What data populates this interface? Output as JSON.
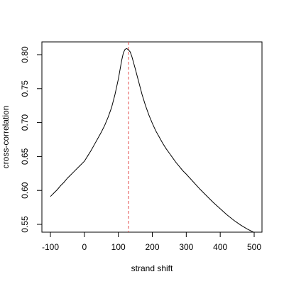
{
  "chart_data": {
    "type": "line",
    "title": "",
    "xlabel": "strand shift",
    "ylabel": "cross-correlation",
    "xlim": [
      -100,
      500
    ],
    "ylim": [
      0.54,
      0.81
    ],
    "xticks": [
      "-100",
      "0",
      "100",
      "200",
      "300",
      "400",
      "500"
    ],
    "yticks": [
      "0.55",
      "0.60",
      "0.65",
      "0.70",
      "0.75",
      "0.80"
    ],
    "grid": false,
    "legend": "none",
    "series": [
      {
        "color": "#000000",
        "x": [
          -100,
          -90,
          -80,
          -70,
          -60,
          -50,
          -40,
          -30,
          -20,
          -10,
          0,
          10,
          20,
          30,
          40,
          50,
          60,
          70,
          80,
          90,
          100,
          105,
          110,
          115,
          120,
          125,
          130,
          135,
          140,
          145,
          150,
          160,
          170,
          180,
          190,
          200,
          210,
          220,
          230,
          240,
          250,
          260,
          270,
          280,
          290,
          300,
          320,
          340,
          360,
          380,
          400,
          420,
          440,
          460,
          480,
          500
        ],
        "y": [
          0.591,
          0.596,
          0.601,
          0.607,
          0.612,
          0.618,
          0.623,
          0.628,
          0.633,
          0.638,
          0.643,
          0.651,
          0.659,
          0.668,
          0.677,
          0.686,
          0.696,
          0.708,
          0.722,
          0.741,
          0.764,
          0.778,
          0.792,
          0.803,
          0.808,
          0.809,
          0.807,
          0.804,
          0.797,
          0.788,
          0.779,
          0.76,
          0.741,
          0.725,
          0.711,
          0.699,
          0.688,
          0.679,
          0.67,
          0.662,
          0.655,
          0.648,
          0.641,
          0.635,
          0.629,
          0.624,
          0.613,
          0.602,
          0.592,
          0.582,
          0.573,
          0.564,
          0.556,
          0.549,
          0.543,
          0.538
        ]
      }
    ],
    "vline": {
      "x": 130,
      "color": "#e34a4a",
      "style": "dashed"
    }
  }
}
